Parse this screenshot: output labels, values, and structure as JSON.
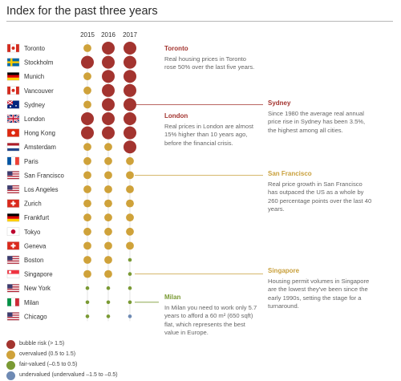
{
  "title": "Index for the past three years",
  "colors": {
    "bubble": "#a3342f",
    "overvalued": "#cfa23a",
    "fair": "#7a9a34",
    "undervalued": "#6e8ab4",
    "connector_gold": "#d9bb6e",
    "connector_red": "#a3342f",
    "connector_green": "#a9bf7a"
  },
  "legend": [
    {
      "key": "bubble",
      "label": "bubble risk  (> 1.5)"
    },
    {
      "key": "overvalued",
      "label": "overvalued (0.5 to 1.5)"
    },
    {
      "key": "fair",
      "label": "fair-valued (–0.5 to 0.5)"
    },
    {
      "key": "undervalued",
      "label": "undervalued (undervalued –1.5 to –0.5)"
    }
  ],
  "annotations": [
    {
      "city": "Toronto",
      "title": "Toronto",
      "text": "Real housing prices in Toronto rose 50% over the last five years.",
      "color": "#a3342f"
    },
    {
      "city": "Sydney",
      "title": "Sydney",
      "text": "Since 1980 the average real annual price rise in Sydney has been 3.5%, the highest among all cities.",
      "color": "#a3342f"
    },
    {
      "city": "London",
      "title": "London",
      "text": "Real prices in London are almost 15% higher than 10 years ago, before the financial crisis.",
      "color": "#a3342f"
    },
    {
      "city": "San Francisco",
      "title": "San Francisco",
      "text": "Real price growth in San Francisco has outpaced the US as a whole by 260 percentage points over the last 40 years.",
      "color": "#c9a03c"
    },
    {
      "city": "Singapore",
      "title": "Singapore",
      "text": "Housing permit volumes in Singapore are the lowest they've been since the early 1990s, setting the stage for a turnaround.",
      "color": "#c9a03c"
    },
    {
      "city": "Milan",
      "title": "Milan",
      "text": "In Milan you need to work only 5.7 years to afford a 60 m² (650 sqft) flat, which represents the best value in Europe.",
      "color": "#7a9a34"
    }
  ],
  "chart_data": {
    "type": "scatter",
    "encoding": "bubble matrix; bubble size and color encode index category per city and year",
    "years": [
      "2015",
      "2016",
      "2017"
    ],
    "categories": {
      "bubble": "bubble risk  (> 1.5)",
      "overvalued": "overvalued (0.5 to 1.5)",
      "fair": "fair-valued (–0.5 to 0.5)",
      "undervalued": "undervalued (undervalued –1.5 to –0.5)"
    },
    "rows": [
      {
        "city": "Toronto",
        "flag": "canada",
        "values": [
          "overvalued",
          "bubble",
          "bubble"
        ]
      },
      {
        "city": "Stockholm",
        "flag": "sweden",
        "values": [
          "bubble",
          "bubble",
          "bubble"
        ]
      },
      {
        "city": "Munich",
        "flag": "germany",
        "values": [
          "overvalued",
          "bubble",
          "bubble"
        ]
      },
      {
        "city": "Vancouver",
        "flag": "canada",
        "values": [
          "overvalued",
          "bubble",
          "bubble"
        ]
      },
      {
        "city": "Sydney",
        "flag": "australia",
        "values": [
          "overvalued",
          "bubble",
          "bubble"
        ]
      },
      {
        "city": "London",
        "flag": "uk",
        "values": [
          "bubble",
          "bubble",
          "bubble"
        ]
      },
      {
        "city": "Hong Kong",
        "flag": "hongkong",
        "values": [
          "bubble",
          "bubble",
          "bubble"
        ]
      },
      {
        "city": "Amsterdam",
        "flag": "netherlands",
        "values": [
          "overvalued",
          "overvalued",
          "bubble"
        ]
      },
      {
        "city": "Paris",
        "flag": "france",
        "values": [
          "overvalued",
          "overvalued",
          "overvalued"
        ]
      },
      {
        "city": "San Francisco",
        "flag": "usa",
        "values": [
          "overvalued",
          "overvalued",
          "overvalued"
        ]
      },
      {
        "city": "Los Angeles",
        "flag": "usa",
        "values": [
          "overvalued",
          "overvalued",
          "overvalued"
        ]
      },
      {
        "city": "Zurich",
        "flag": "switzerland",
        "values": [
          "overvalued",
          "overvalued",
          "overvalued"
        ]
      },
      {
        "city": "Frankfurt",
        "flag": "germany",
        "values": [
          "overvalued",
          "overvalued",
          "overvalued"
        ]
      },
      {
        "city": "Tokyo",
        "flag": "japan",
        "values": [
          "overvalued",
          "overvalued",
          "overvalued"
        ]
      },
      {
        "city": "Geneva",
        "flag": "switzerland",
        "values": [
          "overvalued",
          "overvalued",
          "overvalued"
        ]
      },
      {
        "city": "Boston",
        "flag": "usa",
        "values": [
          "overvalued",
          "overvalued",
          "fair"
        ]
      },
      {
        "city": "Singapore",
        "flag": "singapore",
        "values": [
          "overvalued",
          "overvalued",
          "fair"
        ]
      },
      {
        "city": "New York",
        "flag": "usa",
        "values": [
          "fair",
          "fair",
          "fair"
        ]
      },
      {
        "city": "Milan",
        "flag": "italy",
        "values": [
          "fair",
          "fair",
          "fair"
        ]
      },
      {
        "city": "Chicago",
        "flag": "usa",
        "values": [
          "fair",
          "fair",
          "undervalued"
        ]
      }
    ]
  }
}
